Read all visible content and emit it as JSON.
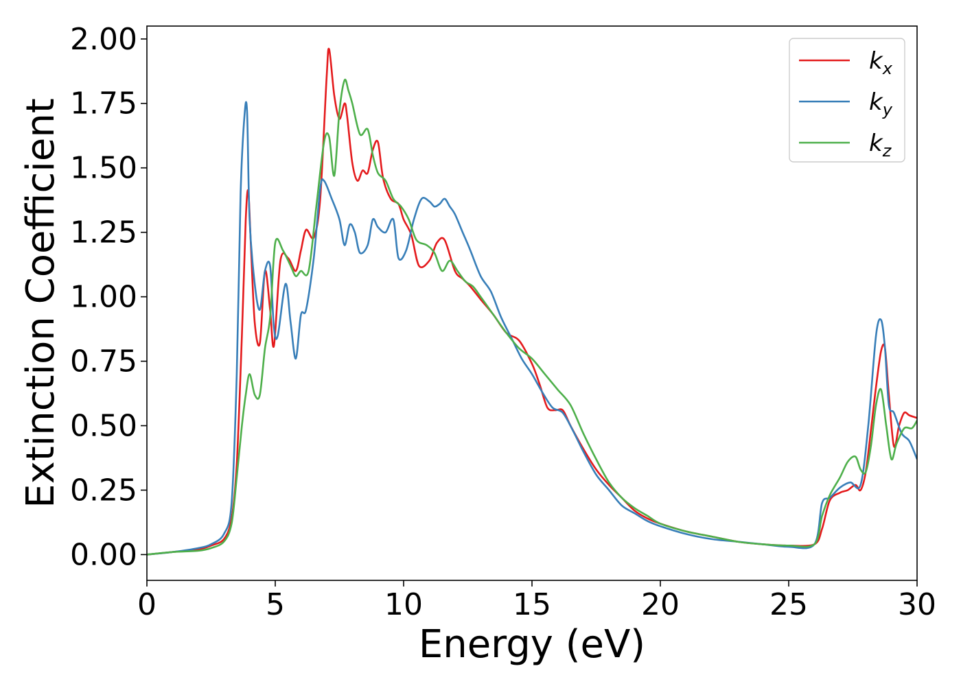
{
  "chart_data": {
    "type": "line",
    "xlabel": "Energy (eV)",
    "ylabel": "Extinction Coefficient",
    "xlim": [
      0,
      30
    ],
    "ylim": [
      -0.1,
      2.05
    ],
    "xticks": [
      0,
      5,
      10,
      15,
      20,
      25,
      30
    ],
    "yticks": [
      0.0,
      0.25,
      0.5,
      0.75,
      1.0,
      1.25,
      1.5,
      1.75,
      2.0
    ],
    "xtick_labels": [
      "0",
      "5",
      "10",
      "15",
      "20",
      "25",
      "30"
    ],
    "ytick_labels": [
      "0.00",
      "0.25",
      "0.50",
      "0.75",
      "1.00",
      "1.25",
      "1.50",
      "1.75",
      "2.00"
    ],
    "grid": false,
    "legend_position": "top-right",
    "series": [
      {
        "name": "k_x",
        "label_main": "k",
        "label_sub": "x",
        "color": "#e41a1c",
        "x": [
          0,
          1,
          2,
          2.5,
          3.0,
          3.3,
          3.5,
          3.7,
          3.85,
          3.95,
          4.05,
          4.2,
          4.4,
          4.6,
          4.8,
          4.95,
          5.2,
          5.5,
          5.8,
          6.0,
          6.2,
          6.5,
          6.75,
          7.0,
          7.1,
          7.3,
          7.5,
          7.7,
          7.8,
          8.0,
          8.2,
          8.4,
          8.6,
          8.8,
          9.0,
          9.2,
          9.5,
          9.8,
          10.0,
          10.3,
          10.6,
          11.0,
          11.3,
          11.6,
          12.0,
          12.3,
          12.6,
          13.0,
          13.5,
          14.0,
          14.5,
          15.0,
          15.3,
          15.6,
          15.9,
          16.2,
          16.5,
          17.0,
          17.5,
          18.0,
          18.5,
          19.0,
          19.5,
          20.0,
          21.0,
          22.0,
          23.0,
          24.0,
          25.0,
          26.0,
          26.3,
          26.6,
          27.0,
          27.3,
          27.6,
          27.8,
          28.0,
          28.2,
          28.4,
          28.6,
          28.75,
          28.9,
          29.1,
          29.3,
          29.5,
          29.7,
          30.0
        ],
        "y": [
          0.0,
          0.01,
          0.02,
          0.035,
          0.06,
          0.14,
          0.35,
          0.85,
          1.3,
          1.41,
          1.2,
          0.9,
          0.82,
          1.1,
          0.95,
          0.81,
          1.14,
          1.15,
          1.1,
          1.18,
          1.26,
          1.23,
          1.38,
          1.85,
          1.96,
          1.78,
          1.69,
          1.75,
          1.7,
          1.52,
          1.45,
          1.49,
          1.48,
          1.57,
          1.6,
          1.46,
          1.38,
          1.36,
          1.3,
          1.24,
          1.12,
          1.14,
          1.21,
          1.22,
          1.1,
          1.07,
          1.04,
          0.99,
          0.93,
          0.86,
          0.83,
          0.74,
          0.66,
          0.57,
          0.56,
          0.56,
          0.5,
          0.41,
          0.33,
          0.27,
          0.22,
          0.17,
          0.14,
          0.12,
          0.09,
          0.07,
          0.05,
          0.04,
          0.035,
          0.04,
          0.1,
          0.21,
          0.24,
          0.25,
          0.27,
          0.25,
          0.32,
          0.48,
          0.65,
          0.79,
          0.8,
          0.62,
          0.42,
          0.5,
          0.55,
          0.54,
          0.53
        ]
      },
      {
        "name": "k_y",
        "label_main": "k",
        "label_sub": "y",
        "color": "#377eb8",
        "x": [
          0,
          1,
          2,
          2.5,
          3.0,
          3.3,
          3.5,
          3.65,
          3.8,
          3.9,
          4.0,
          4.2,
          4.4,
          4.6,
          4.8,
          4.95,
          5.1,
          5.4,
          5.6,
          5.8,
          6.0,
          6.2,
          6.5,
          6.75,
          6.9,
          7.2,
          7.5,
          7.7,
          7.9,
          8.1,
          8.3,
          8.6,
          8.8,
          9.0,
          9.3,
          9.6,
          9.8,
          10.1,
          10.4,
          10.7,
          11.0,
          11.2,
          11.4,
          11.6,
          11.8,
          12.0,
          12.3,
          12.6,
          13.0,
          13.4,
          13.8,
          14.2,
          14.6,
          15.0,
          15.4,
          15.8,
          16.2,
          16.6,
          17.0,
          17.5,
          18.0,
          18.5,
          19.0,
          19.5,
          20.0,
          21.0,
          22.0,
          23.0,
          24.0,
          25.0,
          26.0,
          26.3,
          26.6,
          27.0,
          27.4,
          27.8,
          28.1,
          28.4,
          28.6,
          28.75,
          28.9,
          29.1,
          29.4,
          29.7,
          30.0
        ],
        "y": [
          0.0,
          0.01,
          0.025,
          0.04,
          0.08,
          0.2,
          0.7,
          1.4,
          1.7,
          1.72,
          1.3,
          1.05,
          0.95,
          1.1,
          1.12,
          0.88,
          0.85,
          1.05,
          0.9,
          0.76,
          0.93,
          0.95,
          1.15,
          1.42,
          1.45,
          1.38,
          1.3,
          1.2,
          1.28,
          1.25,
          1.17,
          1.2,
          1.3,
          1.27,
          1.25,
          1.3,
          1.15,
          1.18,
          1.3,
          1.38,
          1.37,
          1.35,
          1.36,
          1.38,
          1.35,
          1.32,
          1.25,
          1.18,
          1.08,
          1.02,
          0.92,
          0.84,
          0.76,
          0.7,
          0.63,
          0.57,
          0.55,
          0.48,
          0.4,
          0.31,
          0.25,
          0.19,
          0.16,
          0.13,
          0.11,
          0.08,
          0.06,
          0.05,
          0.04,
          0.03,
          0.04,
          0.2,
          0.22,
          0.26,
          0.28,
          0.27,
          0.5,
          0.85,
          0.91,
          0.8,
          0.58,
          0.55,
          0.47,
          0.44,
          0.37
        ]
      },
      {
        "name": "k_z",
        "label_main": "k",
        "label_sub": "z",
        "color": "#4daf4a",
        "x": [
          0,
          1,
          2,
          2.5,
          3.0,
          3.3,
          3.5,
          3.7,
          3.85,
          4.0,
          4.2,
          4.4,
          4.6,
          4.8,
          5.0,
          5.3,
          5.6,
          5.8,
          6.0,
          6.3,
          6.6,
          6.9,
          7.1,
          7.3,
          7.5,
          7.7,
          7.85,
          8.0,
          8.3,
          8.6,
          8.8,
          9.0,
          9.3,
          9.6,
          9.9,
          10.2,
          10.5,
          10.9,
          11.2,
          11.5,
          11.8,
          12.1,
          12.4,
          12.7,
          13.0,
          13.5,
          14.0,
          14.5,
          15.0,
          15.5,
          16.0,
          16.5,
          17.0,
          17.5,
          18.0,
          18.5,
          19.0,
          19.5,
          20.0,
          21.0,
          22.0,
          23.0,
          24.0,
          25.0,
          26.0,
          26.3,
          26.6,
          27.0,
          27.3,
          27.6,
          27.8,
          28.0,
          28.2,
          28.4,
          28.6,
          28.8,
          29.0,
          29.2,
          29.5,
          29.8,
          30.0
        ],
        "y": [
          0.0,
          0.01,
          0.015,
          0.025,
          0.05,
          0.12,
          0.3,
          0.5,
          0.62,
          0.7,
          0.62,
          0.62,
          0.8,
          0.92,
          1.21,
          1.18,
          1.12,
          1.08,
          1.1,
          1.1,
          1.35,
          1.6,
          1.62,
          1.47,
          1.72,
          1.84,
          1.8,
          1.75,
          1.63,
          1.65,
          1.55,
          1.48,
          1.45,
          1.38,
          1.35,
          1.3,
          1.22,
          1.2,
          1.17,
          1.1,
          1.14,
          1.1,
          1.06,
          1.04,
          1.0,
          0.93,
          0.86,
          0.8,
          0.76,
          0.7,
          0.64,
          0.58,
          0.47,
          0.37,
          0.28,
          0.22,
          0.18,
          0.15,
          0.12,
          0.09,
          0.07,
          0.05,
          0.04,
          0.035,
          0.04,
          0.15,
          0.23,
          0.3,
          0.36,
          0.38,
          0.33,
          0.32,
          0.42,
          0.58,
          0.64,
          0.5,
          0.37,
          0.43,
          0.49,
          0.49,
          0.52
        ]
      }
    ]
  }
}
